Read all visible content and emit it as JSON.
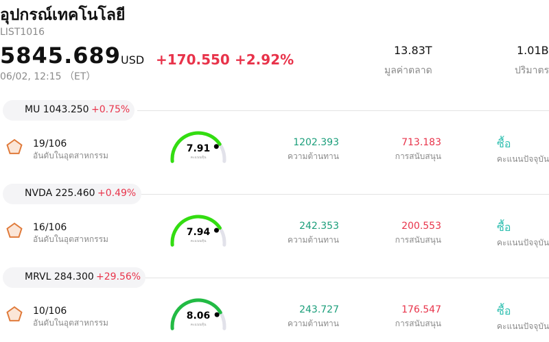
{
  "header": {
    "title": "อุปกรณ์เทคโนโลยี",
    "code": "LIST1016",
    "price": "5845.689",
    "currency": "USD",
    "change": "+170.550",
    "change_pct": "+2.92%",
    "time": "06/02, 12:15 （ET）",
    "market_cap": "13.83T",
    "market_cap_label": "มูลค่าตลาด",
    "volume": "1.01B",
    "volume_label": "ปริมาตร"
  },
  "stocks": [
    {
      "ticker": "MU 1043.250",
      "change": "+0.75%",
      "rank": "19/106",
      "rank_label": "อันดับในอุตสาหกรรม",
      "score": 7.91,
      "score_label": "คะแนนหุ้น",
      "resistance": "1202.393",
      "resistance_label": "ความต้านทาน",
      "support": "713.183",
      "support_label": "การสนับสนุน",
      "signal": "ซื้อ",
      "signal_label": "คะแนนปัจจุบัน"
    },
    {
      "ticker": "NVDA 225.460",
      "change": "+0.49%",
      "rank": "16/106",
      "rank_label": "อันดับในอุตสาหกรรม",
      "score": 7.94,
      "score_label": "คะแนนหุ้น",
      "resistance": "242.353",
      "resistance_label": "ความต้านทาน",
      "support": "200.553",
      "support_label": "การสนับสนุน",
      "signal": "ซื้อ",
      "signal_label": "คะแนนปัจจุบัน"
    },
    {
      "ticker": "MRVL 284.300",
      "change": "+29.56%",
      "rank": "10/106",
      "rank_label": "อันดับในอุตสาหกรรม",
      "score": 8.06,
      "score_label": "คะแนนหุ้น",
      "resistance": "243.727",
      "resistance_label": "ความต้านทาน",
      "support": "176.547",
      "support_label": "การสนับสนุน",
      "signal": "ซื้อ",
      "signal_label": "คะแนนปัจจุบัน"
    }
  ]
}
